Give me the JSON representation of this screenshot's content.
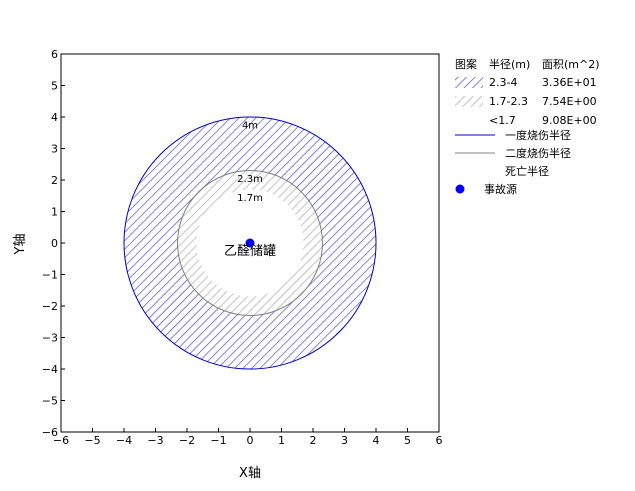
{
  "chart_data": {
    "type": "scatter",
    "xlabel": "X轴",
    "ylabel": "Y轴",
    "xlim": [
      -6,
      6
    ],
    "ylim": [
      -6,
      6
    ],
    "xticks": [
      -6,
      -5,
      -4,
      -3,
      -2,
      -1,
      0,
      1,
      2,
      3,
      4,
      5,
      6
    ],
    "yticks": [
      -6,
      -5,
      -4,
      -3,
      -2,
      -1,
      0,
      1,
      2,
      3,
      4,
      5,
      6
    ],
    "source": {
      "x": 0,
      "y": 0,
      "label": "乙醛储罐",
      "color": "#0000ff"
    },
    "circles": [
      {
        "radius": 4,
        "label": "4m",
        "stroke": "#0000c8",
        "fill": "blue-hatch"
      },
      {
        "radius": 2.3,
        "label": "2.3m",
        "stroke": "#808080",
        "fill": "gray-hatch"
      },
      {
        "radius": 1.7,
        "label": "1.7m",
        "stroke": "none",
        "fill": "white"
      }
    ],
    "legend": {
      "header": {
        "pattern": "图案",
        "radius": "半径(m)",
        "area": "面积(m^2)"
      },
      "rows": [
        {
          "radius": "2.3-4",
          "area": "3.36E+01",
          "swatch": "blue-hatch"
        },
        {
          "radius": "1.7-2.3",
          "area": "7.54E+00",
          "swatch": "gray-hatch"
        },
        {
          "radius": "<1.7",
          "area": "9.08E+00",
          "swatch": "none"
        }
      ],
      "lines": [
        {
          "label": "一度烧伤半径",
          "color": "#0000c8"
        },
        {
          "label": "二度烧伤半径",
          "color": "#808080"
        },
        {
          "label": "死亡半径",
          "color": "none"
        }
      ],
      "marker": {
        "label": "事故源",
        "color": "#0000ff"
      }
    }
  }
}
